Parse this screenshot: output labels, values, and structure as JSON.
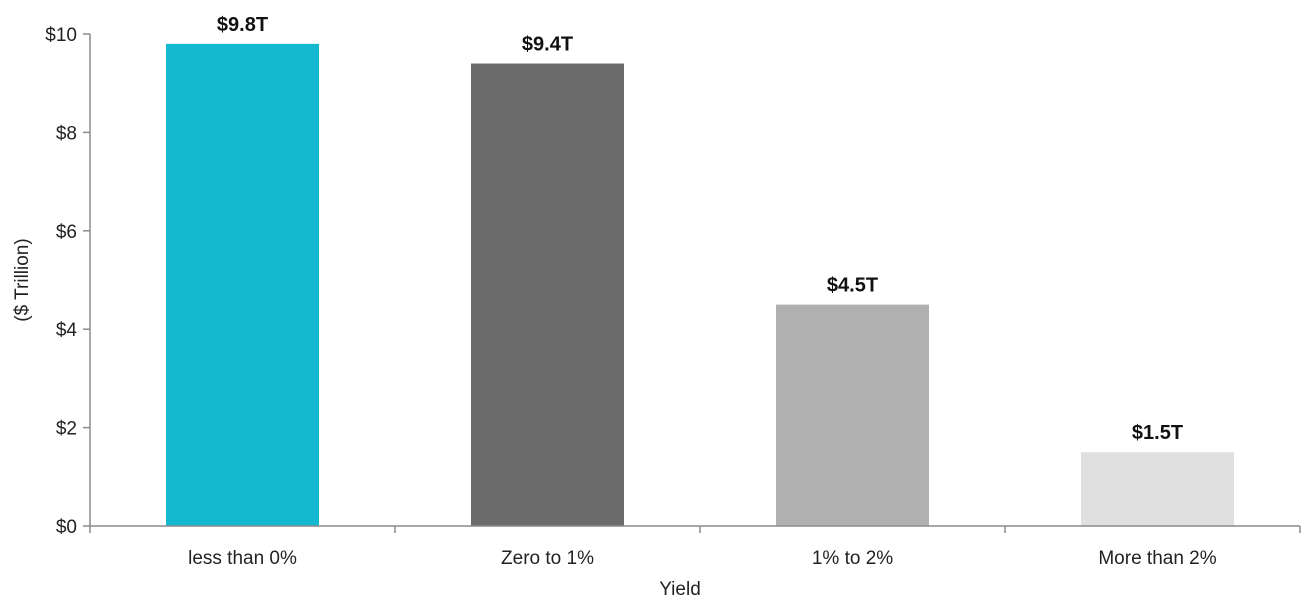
{
  "chart_data": {
    "type": "bar",
    "title": "",
    "xlabel": "Yield",
    "ylabel": "($ Trillion)",
    "categories": [
      "less than 0%",
      "Zero to 1%",
      "1% to 2%",
      "More than 2%"
    ],
    "values": [
      9.8,
      9.4,
      4.5,
      1.5
    ],
    "data_labels": [
      "$9.8T",
      "$9.4T",
      "$4.5T",
      "$1.5T"
    ],
    "bar_colors": [
      "#14b9cf",
      "#6b6b6b",
      "#b0b0b0",
      "#e0e0e0"
    ],
    "ylim": [
      0,
      10
    ],
    "yticks": [
      0,
      2,
      4,
      6,
      8,
      10
    ],
    "ytick_labels": [
      "$0",
      "$2",
      "$4",
      "$6",
      "$8",
      "$10"
    ],
    "grid": false,
    "legend": "none"
  }
}
